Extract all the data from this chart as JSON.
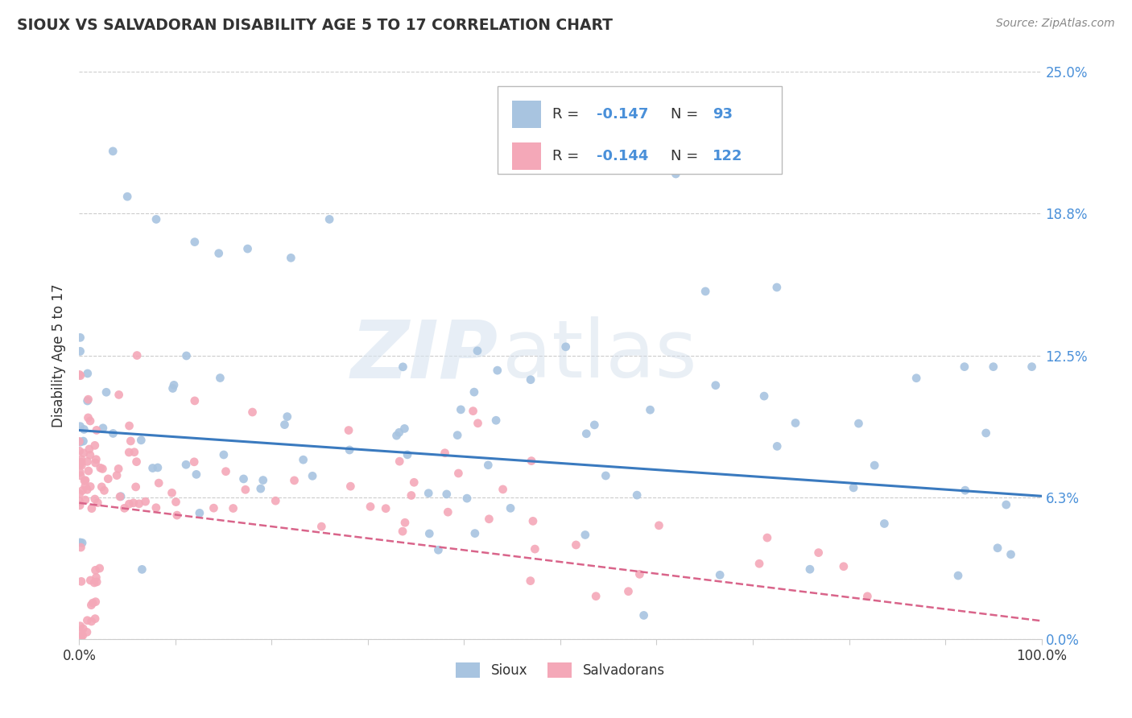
{
  "title": "SIOUX VS SALVADORAN DISABILITY AGE 5 TO 17 CORRELATION CHART",
  "source_text": "Source: ZipAtlas.com",
  "ylabel": "Disability Age 5 to 17",
  "legend_label_1": "Sioux",
  "legend_label_2": "Salvadorans",
  "r1": -0.147,
  "n1": 93,
  "r2": -0.144,
  "n2": 122,
  "xmin": 0.0,
  "xmax": 1.0,
  "ymin": 0.0,
  "ymax": 0.25,
  "yticks": [
    0.0,
    0.0625,
    0.125,
    0.1875,
    0.25
  ],
  "ytick_labels": [
    "0.0%",
    "6.3%",
    "12.5%",
    "18.8%",
    "25.0%"
  ],
  "color1": "#a8c4e0",
  "color2": "#f4a8b8",
  "line_color1": "#3a7abf",
  "line_color2": "#d9648a",
  "text_blue": "#4a90d9",
  "background_color": "#ffffff",
  "grid_color": "#cccccc",
  "y1_line_start": 0.092,
  "y1_line_end": 0.063,
  "y2_line_start": 0.06,
  "y2_line_end": 0.008
}
